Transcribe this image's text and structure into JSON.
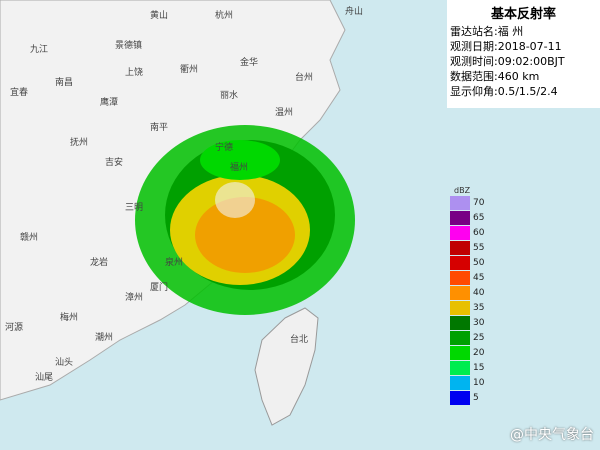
{
  "panel": {
    "title": "基本反射率",
    "rows": [
      {
        "label": "雷达站名:",
        "value": "福 州"
      },
      {
        "label": "观测日期:",
        "value": "2018-07-11"
      },
      {
        "label": "观测时间:",
        "value": "09:02:00BJT"
      },
      {
        "label": "数据范围:",
        "value": "460 km"
      },
      {
        "label": "显示仰角:",
        "value": "0.5/1.5/2.4"
      }
    ]
  },
  "legend": {
    "unit": "dBZ",
    "entries": [
      {
        "value": 70,
        "color": "#ad90f0"
      },
      {
        "value": 65,
        "color": "#780084"
      },
      {
        "value": 60,
        "color": "#ff00f0"
      },
      {
        "value": 55,
        "color": "#c00000"
      },
      {
        "value": 50,
        "color": "#d60000"
      },
      {
        "value": 45,
        "color": "#ff4a00"
      },
      {
        "value": 40,
        "color": "#ff9000"
      },
      {
        "value": 35,
        "color": "#e7c000"
      },
      {
        "value": 30,
        "color": "#007800"
      },
      {
        "value": 25,
        "color": "#00a000"
      },
      {
        "value": 20,
        "color": "#00d800"
      },
      {
        "value": 15,
        "color": "#00ec50"
      },
      {
        "value": 10,
        "color": "#00b4f0"
      },
      {
        "value": 5,
        "color": "#0000f0"
      }
    ]
  },
  "cities": [
    "黄山",
    "杭州",
    "舟山",
    "九江",
    "景德镇",
    "上饶",
    "衢州",
    "金华",
    "台州",
    "南昌",
    "鹰潭",
    "丽水",
    "温州",
    "宜春",
    "抚州",
    "南平",
    "宁德",
    "福州",
    "吉安",
    "三明",
    "泉州",
    "赣州",
    "龙岩",
    "漳州",
    "厦门",
    "梅州",
    "潮州",
    "汕头",
    "河源",
    "汕尾",
    "台北"
  ],
  "watermark": "@中央气象台"
}
